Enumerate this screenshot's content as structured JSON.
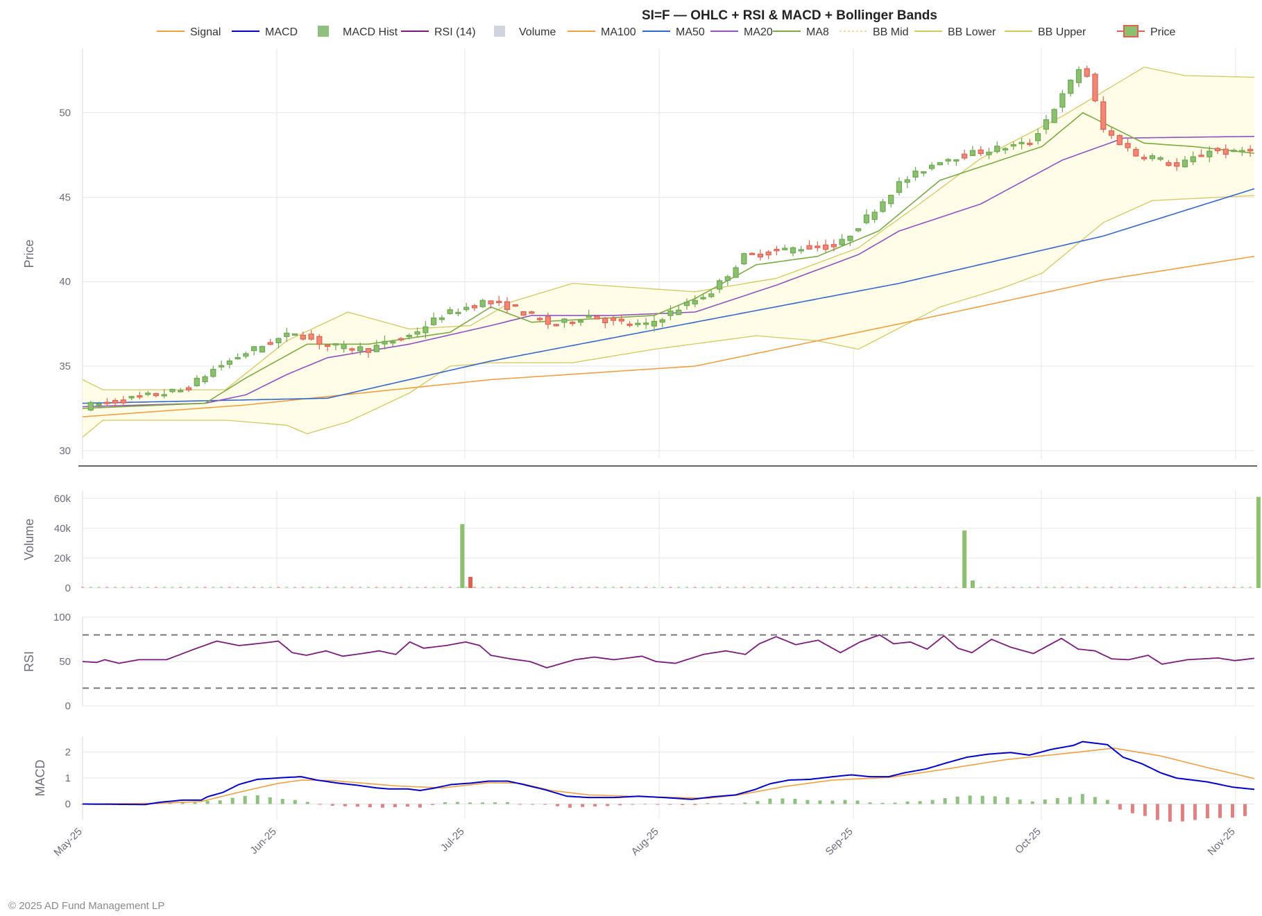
{
  "copyright": "© 2025 AD Fund Management LP",
  "chart_data": {
    "type": "candlestick",
    "title": "SI=F — OHLC + RSI & MACD + Bollinger Bands",
    "legend": [
      {
        "label": "Signal",
        "kind": "line",
        "color": "#f0a040"
      },
      {
        "label": "MACD",
        "kind": "line",
        "color": "#0000cc"
      },
      {
        "label": "MACD Hist",
        "kind": "box",
        "color": "#90c080"
      },
      {
        "label": "RSI (14)",
        "kind": "line",
        "color": "#7a1a7a"
      },
      {
        "label": "Volume",
        "kind": "box",
        "color": "#d0d4dc"
      },
      {
        "label": "MA100",
        "kind": "line",
        "color": "#f0a040"
      },
      {
        "label": "MA50",
        "kind": "line",
        "color": "#3366cc"
      },
      {
        "label": "MA20",
        "kind": "line",
        "color": "#9050c0"
      },
      {
        "label": "MA8",
        "kind": "line",
        "color": "#7aaa40"
      },
      {
        "label": "BB Mid",
        "kind": "dash",
        "color": "#e8e0a0"
      },
      {
        "label": "BB Lower",
        "kind": "line",
        "color": "#d4c860"
      },
      {
        "label": "BB Upper",
        "kind": "line",
        "color": "#d4c860"
      },
      {
        "label": "Price",
        "kind": "candle",
        "color": "#6aa84f"
      }
    ],
    "x_ticks": [
      "May-25",
      "Jun-25",
      "Jul-25",
      "Aug-25",
      "Sep-25",
      "Oct-25",
      "Nov-25"
    ],
    "x_tick_dates": [
      "2025-05-01",
      "2025-06-01",
      "2025-07-01",
      "2025-08-01",
      "2025-09-01",
      "2025-10-01",
      "2025-11-01"
    ],
    "x_range": [
      "2025-05-01",
      "2025-11-04"
    ],
    "panels": {
      "price": {
        "ylabel": "Price",
        "ylim": [
          29.5,
          53.8
        ],
        "yticks": [
          30,
          35,
          40,
          45,
          50
        ]
      },
      "volume": {
        "ylabel": "Volume",
        "ylim": [
          0,
          65000
        ],
        "yticks": [
          0,
          20000,
          40000,
          60000
        ],
        "ytick_labels": [
          "0",
          "20k",
          "40k",
          "60k"
        ]
      },
      "rsi": {
        "ylabel": "RSI",
        "ylim": [
          0,
          100
        ],
        "yticks": [
          0,
          50,
          100
        ],
        "bands": [
          20,
          80
        ]
      },
      "macd": {
        "ylabel": "MACD",
        "ylim": [
          -0.6,
          2.6
        ],
        "yticks": [
          0,
          1,
          2
        ]
      }
    },
    "colors": {
      "up": "#6aa84f",
      "down": "#e06050",
      "band_fill": "#fffde8",
      "rsi": "#7a1a7a",
      "macd": "#0000cc",
      "signal": "#f0a040",
      "hist_up": "#90c080",
      "hist_down": "#e08080"
    },
    "knots": {
      "close": [
        [
          0,
          32.6
        ],
        [
          15,
          33.2
        ],
        [
          25,
          33.6
        ],
        [
          32,
          34.8
        ],
        [
          40,
          35.8
        ],
        [
          52,
          37.0
        ],
        [
          60,
          36.2
        ],
        [
          70,
          36.0
        ],
        [
          80,
          36.8
        ],
        [
          88,
          38.0
        ],
        [
          98,
          38.8
        ],
        [
          105,
          38.5
        ],
        [
          115,
          37.4
        ],
        [
          124,
          38.0
        ],
        [
          130,
          37.6
        ],
        [
          138,
          37.4
        ],
        [
          145,
          38.3
        ],
        [
          154,
          39.4
        ],
        [
          162,
          41.5
        ],
        [
          175,
          42.0
        ],
        [
          185,
          42.1
        ],
        [
          192,
          43.8
        ],
        [
          200,
          45.8
        ],
        [
          210,
          47.2
        ],
        [
          222,
          47.8
        ],
        [
          232,
          48.2
        ],
        [
          240,
          51.0
        ],
        [
          245,
          53.0
        ],
        [
          250,
          49.0
        ],
        [
          258,
          47.5
        ],
        [
          262,
          47.4
        ],
        [
          268,
          46.8
        ],
        [
          276,
          47.8
        ],
        [
          282,
          47.6
        ],
        [
          287,
          48.0
        ]
      ],
      "ma100": [
        [
          0,
          32.0
        ],
        [
          40,
          32.7
        ],
        [
          100,
          34.2
        ],
        [
          150,
          35.0
        ],
        [
          200,
          37.5
        ],
        [
          250,
          40.1
        ],
        [
          287,
          41.5
        ]
      ],
      "ma50": [
        [
          0,
          32.8
        ],
        [
          60,
          33.1
        ],
        [
          100,
          35.3
        ],
        [
          150,
          37.6
        ],
        [
          200,
          39.9
        ],
        [
          250,
          42.7
        ],
        [
          287,
          45.5
        ]
      ],
      "ma20": [
        [
          0,
          32.6
        ],
        [
          30,
          32.8
        ],
        [
          40,
          33.3
        ],
        [
          50,
          34.5
        ],
        [
          60,
          35.5
        ],
        [
          80,
          36.3
        ],
        [
          100,
          37.4
        ],
        [
          110,
          38.0
        ],
        [
          130,
          38.0
        ],
        [
          150,
          38.2
        ],
        [
          170,
          39.8
        ],
        [
          190,
          41.6
        ],
        [
          200,
          43.0
        ],
        [
          220,
          44.6
        ],
        [
          240,
          47.2
        ],
        [
          255,
          48.5
        ],
        [
          287,
          48.6
        ]
      ],
      "ma8": [
        [
          0,
          32.5
        ],
        [
          30,
          32.8
        ],
        [
          40,
          34.3
        ],
        [
          55,
          36.3
        ],
        [
          70,
          36.3
        ],
        [
          90,
          37.0
        ],
        [
          100,
          38.5
        ],
        [
          110,
          37.6
        ],
        [
          125,
          37.8
        ],
        [
          140,
          38.0
        ],
        [
          150,
          39.0
        ],
        [
          165,
          41.0
        ],
        [
          180,
          41.5
        ],
        [
          195,
          43.0
        ],
        [
          210,
          46.0
        ],
        [
          235,
          48.0
        ],
        [
          245,
          50.0
        ],
        [
          260,
          48.2
        ],
        [
          272,
          48.0
        ],
        [
          287,
          47.6
        ]
      ],
      "bb_upper": [
        [
          0,
          34.2
        ],
        [
          5,
          33.6
        ],
        [
          35,
          33.6
        ],
        [
          50,
          36.5
        ],
        [
          65,
          38.2
        ],
        [
          80,
          37.2
        ],
        [
          95,
          37.4
        ],
        [
          105,
          38.8
        ],
        [
          120,
          39.9
        ],
        [
          150,
          39.4
        ],
        [
          170,
          40.2
        ],
        [
          190,
          42.0
        ],
        [
          205,
          44.6
        ],
        [
          220,
          47.3
        ],
        [
          240,
          49.8
        ],
        [
          260,
          52.7
        ],
        [
          270,
          52.2
        ],
        [
          287,
          52.1
        ]
      ],
      "bb_lower": [
        [
          0,
          30.8
        ],
        [
          5,
          31.8
        ],
        [
          35,
          31.8
        ],
        [
          50,
          31.5
        ],
        [
          55,
          31.0
        ],
        [
          65,
          31.7
        ],
        [
          80,
          33.4
        ],
        [
          90,
          35.0
        ],
        [
          100,
          35.2
        ],
        [
          120,
          35.2
        ],
        [
          140,
          36.0
        ],
        [
          165,
          36.8
        ],
        [
          180,
          36.5
        ],
        [
          190,
          36.0
        ],
        [
          210,
          38.5
        ],
        [
          225,
          39.6
        ],
        [
          235,
          40.5
        ],
        [
          250,
          43.5
        ],
        [
          262,
          44.8
        ],
        [
          287,
          45.1
        ]
      ],
      "rsi": [
        [
          0,
          50
        ],
        [
          5,
          49
        ],
        [
          8,
          52
        ],
        [
          13,
          48
        ],
        [
          20,
          52
        ],
        [
          30,
          52
        ],
        [
          40,
          64
        ],
        [
          48,
          73
        ],
        [
          56,
          68
        ],
        [
          65,
          71
        ],
        [
          70,
          73
        ],
        [
          75,
          60
        ],
        [
          80,
          57
        ],
        [
          87,
          62
        ],
        [
          93,
          56
        ],
        [
          100,
          59
        ],
        [
          106,
          62
        ],
        [
          112,
          58
        ],
        [
          117,
          72
        ],
        [
          122,
          65
        ],
        [
          130,
          68
        ],
        [
          137,
          72
        ],
        [
          142,
          68
        ],
        [
          146,
          57
        ],
        [
          153,
          53
        ],
        [
          160,
          50
        ],
        [
          166,
          43
        ],
        [
          176,
          52
        ],
        [
          183,
          55
        ],
        [
          190,
          52
        ],
        [
          200,
          56
        ],
        [
          205,
          50
        ],
        [
          212,
          48
        ],
        [
          222,
          58
        ],
        [
          230,
          62
        ],
        [
          237,
          58
        ],
        [
          242,
          70
        ],
        [
          248,
          78
        ],
        [
          255,
          69
        ],
        [
          263,
          74
        ],
        [
          271,
          60
        ],
        [
          278,
          72
        ],
        [
          285,
          80
        ],
        [
          290,
          70
        ],
        [
          296,
          72
        ],
        [
          302,
          64
        ],
        [
          308,
          79
        ],
        [
          313,
          65
        ],
        [
          318,
          60
        ],
        [
          325,
          75
        ],
        [
          332,
          66
        ],
        [
          340,
          59
        ],
        [
          350,
          76
        ],
        [
          356,
          64
        ],
        [
          362,
          62
        ],
        [
          368,
          53
        ],
        [
          374,
          52
        ],
        [
          381,
          57
        ],
        [
          386,
          47
        ],
        [
          395,
          52
        ],
        [
          406,
          54
        ],
        [
          412,
          51
        ],
        [
          420,
          54
        ]
      ],
      "macd": [
        [
          0,
          0.0
        ],
        [
          20,
          -0.02
        ],
        [
          25,
          0.07
        ],
        [
          32,
          0.15
        ],
        [
          38,
          0.15
        ],
        [
          40,
          0.28
        ],
        [
          45,
          0.45
        ],
        [
          50,
          0.75
        ],
        [
          56,
          0.95
        ],
        [
          65,
          1.02
        ],
        [
          70,
          1.05
        ],
        [
          75,
          0.92
        ],
        [
          82,
          0.8
        ],
        [
          88,
          0.72
        ],
        [
          94,
          0.62
        ],
        [
          98,
          0.58
        ],
        [
          104,
          0.58
        ],
        [
          108,
          0.52
        ],
        [
          112,
          0.6
        ],
        [
          118,
          0.75
        ],
        [
          124,
          0.8
        ],
        [
          130,
          0.88
        ],
        [
          136,
          0.88
        ],
        [
          140,
          0.78
        ],
        [
          148,
          0.55
        ],
        [
          155,
          0.3
        ],
        [
          162,
          0.25
        ],
        [
          170,
          0.25
        ],
        [
          178,
          0.3
        ],
        [
          186,
          0.25
        ],
        [
          195,
          0.18
        ],
        [
          202,
          0.28
        ],
        [
          209,
          0.35
        ],
        [
          215,
          0.55
        ],
        [
          220,
          0.78
        ],
        [
          226,
          0.92
        ],
        [
          233,
          0.95
        ],
        [
          240,
          1.05
        ],
        [
          246,
          1.12
        ],
        [
          252,
          1.05
        ],
        [
          258,
          1.05
        ],
        [
          263,
          1.2
        ],
        [
          270,
          1.35
        ],
        [
          277,
          1.6
        ],
        [
          283,
          1.8
        ],
        [
          290,
          1.92
        ],
        [
          297,
          1.98
        ],
        [
          303,
          1.88
        ],
        [
          310,
          2.1
        ],
        [
          317,
          2.25
        ],
        [
          320,
          2.4
        ],
        [
          328,
          2.28
        ],
        [
          333,
          1.8
        ],
        [
          339,
          1.55
        ],
        [
          345,
          1.2
        ],
        [
          350,
          1.0
        ],
        [
          360,
          0.85
        ],
        [
          368,
          0.65
        ],
        [
          376,
          0.55
        ]
      ],
      "signal": [
        [
          0,
          0.0
        ],
        [
          25,
          0.03
        ],
        [
          38,
          0.1
        ],
        [
          50,
          0.45
        ],
        [
          62,
          0.78
        ],
        [
          70,
          0.92
        ],
        [
          80,
          0.9
        ],
        [
          100,
          0.7
        ],
        [
          115,
          0.62
        ],
        [
          130,
          0.82
        ],
        [
          140,
          0.8
        ],
        [
          150,
          0.52
        ],
        [
          162,
          0.35
        ],
        [
          180,
          0.28
        ],
        [
          200,
          0.22
        ],
        [
          210,
          0.35
        ],
        [
          225,
          0.68
        ],
        [
          240,
          0.92
        ],
        [
          258,
          1.02
        ],
        [
          275,
          1.32
        ],
        [
          295,
          1.7
        ],
        [
          315,
          1.95
        ],
        [
          330,
          2.15
        ],
        [
          345,
          1.85
        ],
        [
          360,
          1.4
        ],
        [
          376,
          0.95
        ]
      ]
    },
    "volume_spikes": [
      [
        93,
        42800,
        "up"
      ],
      [
        95,
        7500,
        "down"
      ],
      [
        216,
        38500,
        "up"
      ],
      [
        218,
        5000,
        "up"
      ],
      [
        288,
        61000,
        "up"
      ]
    ],
    "n_days": 288,
    "n_rsi": 420,
    "n_macd": 376
  }
}
